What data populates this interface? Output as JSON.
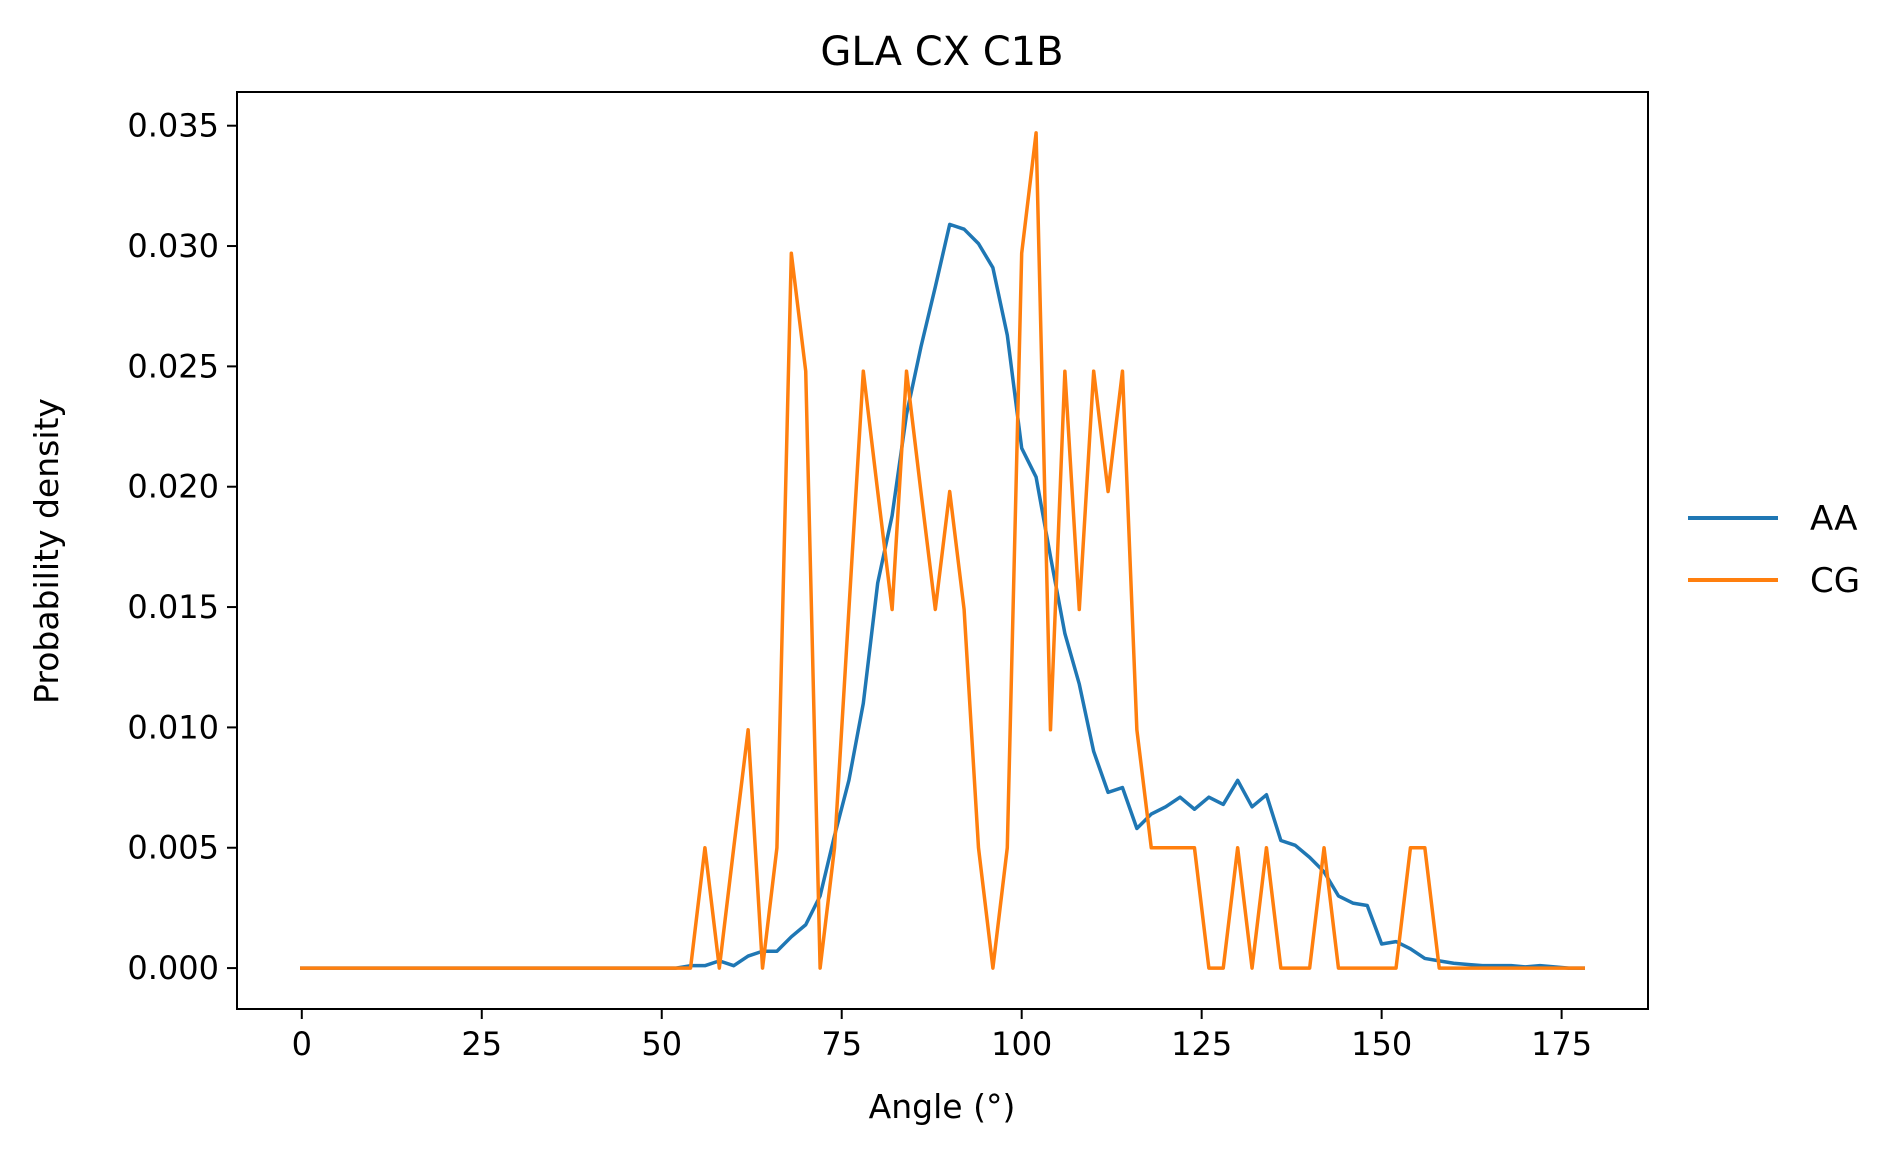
{
  "chart_data": {
    "type": "line",
    "title": "GLA CX C1B",
    "xlabel": "Angle (°)",
    "ylabel": "Probability density",
    "xlim": [
      -9,
      187
    ],
    "ylim": [
      -0.0017,
      0.0364
    ],
    "x_ticks": [
      0,
      25,
      50,
      75,
      100,
      125,
      150,
      175
    ],
    "x_tick_labels": [
      "0",
      "25",
      "50",
      "75",
      "100",
      "125",
      "150",
      "175"
    ],
    "y_ticks": [
      0.0,
      0.005,
      0.01,
      0.015,
      0.02,
      0.025,
      0.03,
      0.035
    ],
    "y_tick_labels": [
      "0.000",
      "0.005",
      "0.010",
      "0.015",
      "0.020",
      "0.025",
      "0.030",
      "0.035"
    ],
    "grid": false,
    "legend": {
      "placement": "outside-right",
      "entries": [
        "AA",
        "CG"
      ]
    },
    "x": [
      0,
      2,
      4,
      6,
      8,
      10,
      12,
      14,
      16,
      18,
      20,
      22,
      24,
      26,
      28,
      30,
      32,
      34,
      36,
      38,
      40,
      42,
      44,
      46,
      48,
      50,
      52,
      54,
      56,
      58,
      60,
      62,
      64,
      66,
      68,
      70,
      72,
      74,
      76,
      78,
      80,
      82,
      84,
      86,
      88,
      90,
      92,
      94,
      96,
      98,
      100,
      102,
      104,
      106,
      108,
      110,
      112,
      114,
      116,
      118,
      120,
      122,
      124,
      126,
      128,
      130,
      132,
      134,
      136,
      138,
      140,
      142,
      144,
      146,
      148,
      150,
      152,
      154,
      156,
      158,
      160,
      162,
      164,
      166,
      168,
      170,
      172,
      174,
      176,
      178
    ],
    "series": [
      {
        "name": "AA",
        "color": "#1f77b4",
        "values": [
          0,
          0,
          0,
          0,
          0,
          0,
          0,
          0,
          0,
          0,
          0,
          0,
          0,
          0,
          0,
          0,
          0,
          0,
          0,
          0,
          0,
          0,
          0,
          0,
          0,
          0,
          0,
          0.0001,
          0.0001,
          0.0003,
          0.0001,
          0.0005,
          0.0007,
          0.0007,
          0.0013,
          0.0018,
          0.003,
          0.0055,
          0.0078,
          0.011,
          0.016,
          0.0188,
          0.023,
          0.0258,
          0.0283,
          0.0309,
          0.0307,
          0.0301,
          0.0291,
          0.0263,
          0.0216,
          0.0204,
          0.0171,
          0.0139,
          0.0118,
          0.009,
          0.0073,
          0.0075,
          0.0058,
          0.0064,
          0.0067,
          0.0071,
          0.0066,
          0.0071,
          0.0068,
          0.0078,
          0.0067,
          0.0072,
          0.0053,
          0.0051,
          0.0046,
          0.004,
          0.003,
          0.0027,
          0.0026,
          0.001,
          0.0011,
          0.0008,
          0.0004,
          0.0003,
          0.0002,
          0.00015,
          0.0001,
          0.0001,
          0.0001,
          5e-05,
          0.0001,
          5e-05,
          0,
          0
        ]
      },
      {
        "name": "CG",
        "color": "#ff7f0e",
        "values": [
          0,
          0,
          0,
          0,
          0,
          0,
          0,
          0,
          0,
          0,
          0,
          0,
          0,
          0,
          0,
          0,
          0,
          0,
          0,
          0,
          0,
          0,
          0,
          0,
          0,
          0,
          0,
          0,
          0.005,
          0,
          0.005,
          0.0099,
          0,
          0.005,
          0.0297,
          0.0248,
          0,
          0.005,
          0.0149,
          0.0248,
          0.0198,
          0.0149,
          0.0248,
          0.0198,
          0.0149,
          0.0198,
          0.0149,
          0.005,
          0,
          0.005,
          0.0297,
          0.0347,
          0.0099,
          0.0248,
          0.0149,
          0.0248,
          0.0198,
          0.0248,
          0.0099,
          0.005,
          0.005,
          0.005,
          0.005,
          0,
          0,
          0.005,
          0,
          0.005,
          0,
          0,
          0,
          0.005,
          0,
          0,
          0,
          0,
          0,
          0.005,
          0.005,
          0,
          0,
          0,
          0,
          0,
          0,
          0,
          0,
          0,
          0,
          0
        ]
      }
    ]
  }
}
